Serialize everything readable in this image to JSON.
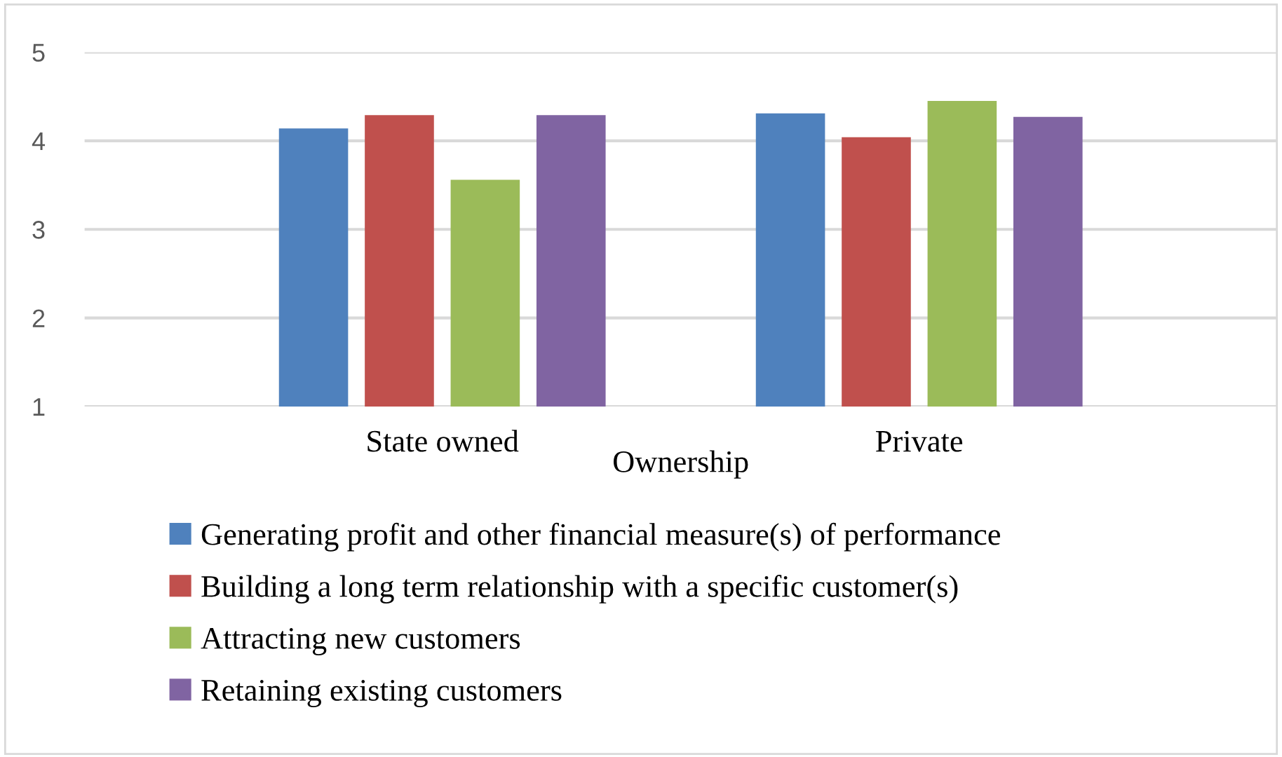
{
  "chart_data": {
    "type": "bar",
    "xlabel": "Ownership",
    "categories": [
      "State owned",
      "Private"
    ],
    "series": [
      {
        "name": "Generating profit and other financial measure(s) of performance",
        "color": "#4f81bd",
        "values": [
          4.14,
          4.31
        ]
      },
      {
        "name": "Building a long term relationship with a specific customer(s)",
        "color": "#c0504d",
        "values": [
          4.29,
          4.04
        ]
      },
      {
        "name": "Attracting new customers",
        "color": "#9bbb59",
        "values": [
          3.56,
          4.45
        ]
      },
      {
        "name": "Retaining existing customers",
        "color": "#8064a2",
        "values": [
          4.29,
          4.27
        ]
      }
    ],
    "ylim": [
      1,
      5
    ],
    "yticks": [
      1,
      2,
      3,
      4,
      5
    ],
    "grid": "y",
    "legend": "bottom"
  }
}
